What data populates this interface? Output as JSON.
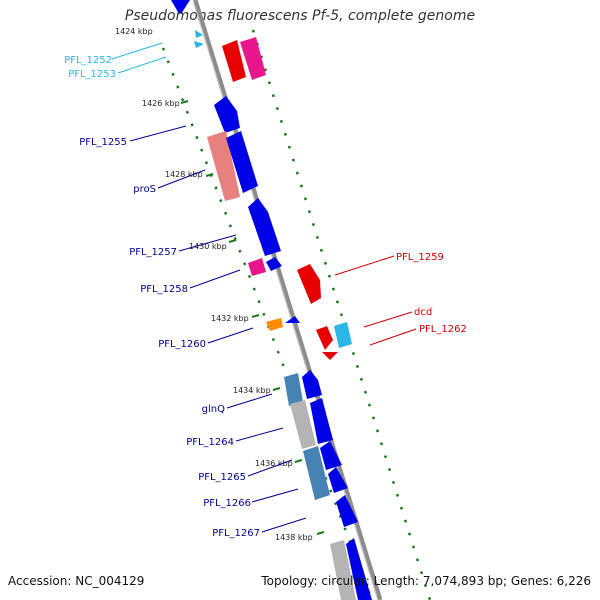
{
  "title": "Pseudomonas fluorescens Pf-5, complete genome",
  "footer": {
    "accession": "Accession: NC_004129",
    "summary": "Topology: circular; Length: 7,074,893 bp; Genes: 6,226"
  },
  "ticks": [
    "1424 kbp",
    "1426 kbp",
    "1428 kbp",
    "1430 kbp",
    "1432 kbp",
    "1434 kbp",
    "1436 kbp",
    "1438 kbp"
  ],
  "gene_labels": {
    "PFL_1252": "PFL_1252",
    "PFL_1253": "PFL_1253",
    "PFL_1255": "PFL_1255",
    "proS": "proS",
    "PFL_1257": "PFL_1257",
    "PFL_1258": "PFL_1258",
    "PFL_1259": "PFL_1259",
    "PFL_1260": "PFL_1260",
    "dcd": "dcd",
    "PFL_1262": "PFL_1262",
    "glnQ": "glnQ",
    "PFL_1264": "PFL_1264",
    "PFL_1265": "PFL_1265",
    "PFL_1266": "PFL_1266",
    "PFL_1267": "PFL_1267"
  },
  "colors": {
    "backbone": "#8c8c8c",
    "forward_gene": "#0000e6",
    "reverse_gene": "#e60000",
    "trna": "#e8158c",
    "light_blue": "#29b6e6",
    "steel_blue": "#4682b4",
    "salmon": "#e88080",
    "orange": "#ff8c00",
    "gray_gene": "#b4b4b4",
    "tick": "#1a7a1a",
    "label_fwd": "#00008b",
    "label_rev": "#cc0000",
    "label_cyan": "#29b6e6"
  }
}
